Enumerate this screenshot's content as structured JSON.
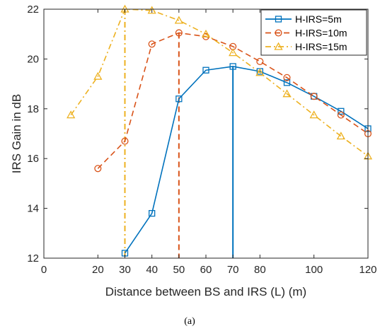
{
  "chart_data": {
    "type": "line",
    "title": "",
    "xlabel": "Distance between BS and IRS (L) (m)",
    "ylabel": "IRS Gain in dB",
    "xlim": [
      0,
      120
    ],
    "ylim": [
      12,
      22
    ],
    "x_ticks": [
      "0",
      "20",
      "30",
      "40",
      "50",
      "60",
      "70",
      "80",
      "100",
      "120"
    ],
    "y_ticks": [
      "12",
      "14",
      "16",
      "18",
      "20",
      "22"
    ],
    "grid": false,
    "legend_position": "top-right",
    "caption": "(a)",
    "series": [
      {
        "name": "H-IRS=5m",
        "color": "#0072BD",
        "line_style": "solid",
        "marker": "square",
        "x": [
          30,
          40,
          50,
          60,
          70,
          80,
          90,
          100,
          110,
          120
        ],
        "y": [
          12.2,
          13.8,
          18.4,
          19.55,
          19.7,
          19.5,
          19.05,
          18.5,
          17.9,
          17.2
        ],
        "vertical_marker_x": 70
      },
      {
        "name": "H-IRS=10m",
        "color": "#D95319",
        "line_style": "dashed",
        "marker": "circle",
        "x": [
          20,
          30,
          40,
          50,
          60,
          70,
          80,
          90,
          100,
          110,
          120
        ],
        "y": [
          15.6,
          16.7,
          20.6,
          21.05,
          20.9,
          20.5,
          19.9,
          19.25,
          18.5,
          17.75,
          17.0
        ],
        "vertical_marker_x": 50
      },
      {
        "name": "H-IRS=15m",
        "color": "#EDB120",
        "line_style": "dashdot",
        "marker": "triangle",
        "x": [
          10,
          20,
          30,
          40,
          50,
          60,
          70,
          80,
          90,
          100,
          110,
          120
        ],
        "y": [
          17.75,
          19.3,
          22.0,
          21.95,
          21.55,
          21.0,
          20.25,
          19.45,
          18.6,
          17.75,
          16.9,
          16.1
        ],
        "vertical_marker_x": 30
      }
    ]
  }
}
